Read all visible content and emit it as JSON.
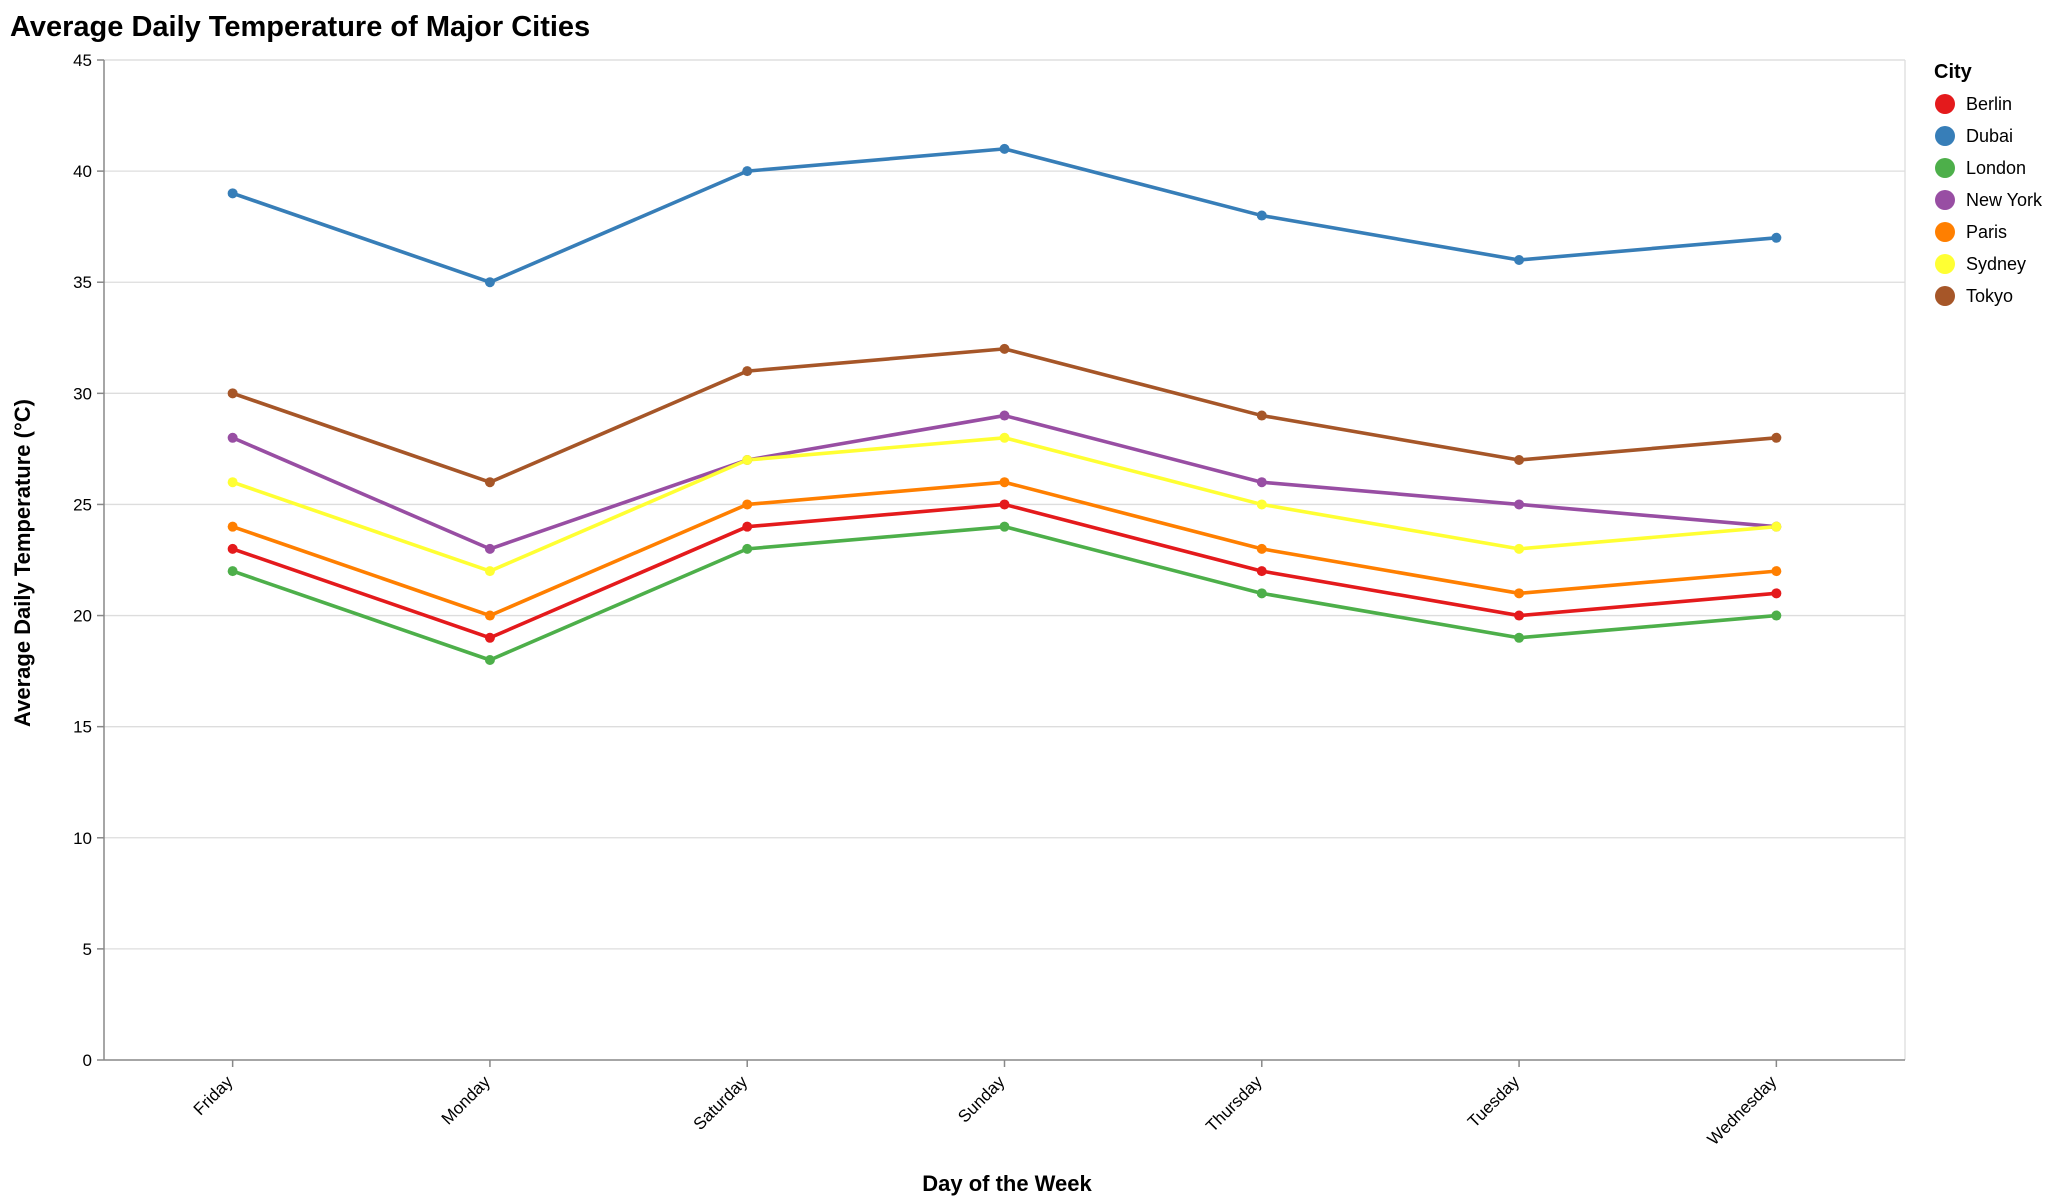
{
  "chart_data": {
    "type": "line",
    "title": "Average Daily Temperature of Major Cities",
    "xlabel": "Day of the Week",
    "ylabel": "Average Daily Temperature (°C)",
    "ylim": [
      0,
      45
    ],
    "yticks": [
      0,
      5,
      10,
      15,
      20,
      25,
      30,
      35,
      40,
      45
    ],
    "grid": true,
    "legend_title": "City",
    "legend_placement": "top-right",
    "categories": [
      "Friday",
      "Monday",
      "Saturday",
      "Sunday",
      "Thursday",
      "Tuesday",
      "Wednesday"
    ],
    "series": [
      {
        "name": "Berlin",
        "color": "#e41a1c",
        "values": [
          23,
          19,
          24,
          25,
          22,
          20,
          21
        ]
      },
      {
        "name": "Dubai",
        "color": "#377eb8",
        "values": [
          39,
          35,
          40,
          41,
          38,
          36,
          37
        ]
      },
      {
        "name": "London",
        "color": "#4daf4a",
        "values": [
          22,
          18,
          23,
          24,
          21,
          19,
          20
        ]
      },
      {
        "name": "New York",
        "color": "#984ea3",
        "values": [
          28,
          23,
          27,
          29,
          26,
          25,
          24
        ]
      },
      {
        "name": "Paris",
        "color": "#ff7f00",
        "values": [
          24,
          20,
          25,
          26,
          23,
          21,
          22
        ]
      },
      {
        "name": "Sydney",
        "color": "#ffff33",
        "values": [
          26,
          22,
          27,
          28,
          25,
          23,
          24
        ]
      },
      {
        "name": "Tokyo",
        "color": "#a65628",
        "values": [
          30,
          26,
          31,
          32,
          29,
          27,
          28
        ]
      }
    ]
  }
}
